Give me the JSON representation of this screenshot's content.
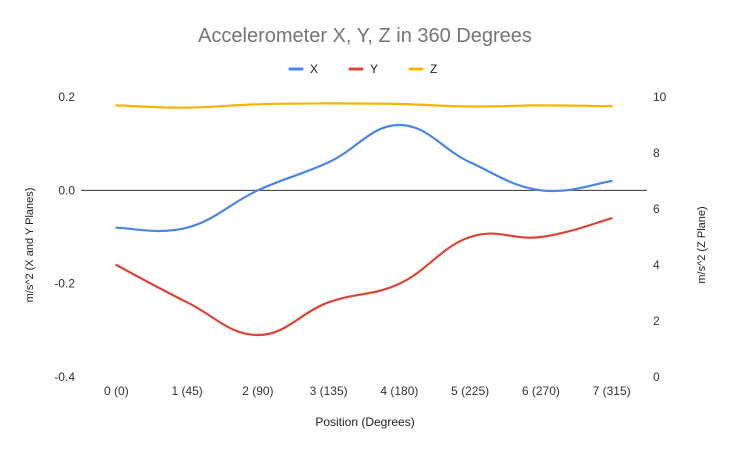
{
  "chart_data": {
    "type": "line",
    "title": "Accelerometer X, Y, Z in 360 Degrees",
    "xlabel": "Position (Degrees)",
    "ylabel_left": "m/s^2 (X and Y Planes)",
    "ylabel_right": "m/s^2 (Z Plane)",
    "categories": [
      "0 (0)",
      "1 (45)",
      "2 (90)",
      "3 (135)",
      "4 (180)",
      "5 (225)",
      "6 (270)",
      "7 (315)"
    ],
    "y_left": {
      "range": [
        -0.4,
        0.2
      ],
      "ticks": [
        "-0.4",
        "-0.2",
        "0.0",
        "0.2"
      ],
      "tick_values": [
        -0.4,
        -0.2,
        0.0,
        0.2
      ]
    },
    "y_right": {
      "range": [
        0,
        10
      ],
      "ticks": [
        "0",
        "2",
        "4",
        "6",
        "8",
        "10"
      ],
      "tick_values": [
        0,
        2,
        4,
        6,
        8,
        10
      ]
    },
    "legend_position": "top",
    "grid": false,
    "series": [
      {
        "name": "X",
        "axis": "left",
        "color": "#4a86e8",
        "values": [
          -0.08,
          -0.08,
          0.0,
          0.06,
          0.14,
          0.06,
          0.0,
          0.02
        ]
      },
      {
        "name": "Y",
        "axis": "left",
        "color": "#db4437",
        "values": [
          -0.16,
          -0.24,
          -0.31,
          -0.24,
          -0.2,
          -0.1,
          -0.1,
          -0.06
        ]
      },
      {
        "name": "Z",
        "axis": "right",
        "color": "#f4b400",
        "values": [
          9.7,
          9.62,
          9.74,
          9.77,
          9.75,
          9.66,
          9.7,
          9.67
        ]
      }
    ]
  }
}
